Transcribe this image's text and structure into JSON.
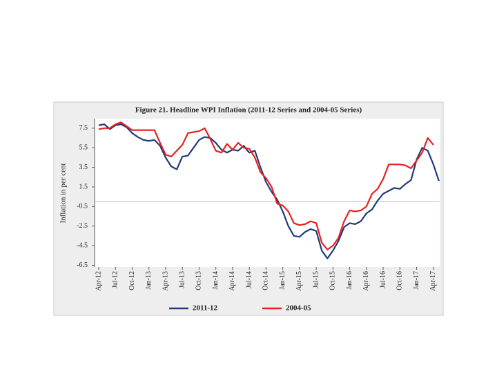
{
  "chart_data": {
    "type": "line",
    "title": "Figure 21. Headline WPI Inflation (2011-12 Series and 2004-05 Series)",
    "y_label": "Inflation in per cent",
    "categories": [
      "Apr-12",
      null,
      null,
      "Jul-12",
      null,
      null,
      "Oct-12",
      null,
      null,
      "Jan-13",
      null,
      null,
      "Apr-13",
      null,
      null,
      "Jul-13",
      null,
      null,
      "Oct-13",
      null,
      null,
      "Jan-14",
      null,
      null,
      "Apr-14",
      null,
      null,
      "Jul-14",
      null,
      null,
      "Oct-14",
      null,
      null,
      "Jan-15",
      null,
      null,
      "Apr-15",
      null,
      null,
      "Jul-15",
      null,
      null,
      "Oct-15",
      null,
      null,
      "Jan-16",
      null,
      null,
      "Apr-16",
      null,
      null,
      "Jul-16",
      null,
      null,
      "Oct-16",
      null,
      null,
      "Jan-17",
      null,
      null,
      "Apr-17",
      null
    ],
    "series": [
      {
        "name": "2011-12",
        "color": "#1f3a7a",
        "values": [
          7.8,
          7.9,
          7.4,
          7.8,
          7.9,
          7.6,
          7.0,
          6.6,
          6.3,
          6.2,
          6.3,
          5.7,
          4.5,
          3.6,
          3.3,
          4.6,
          4.7,
          5.5,
          6.3,
          6.6,
          6.5,
          6.0,
          5.3,
          5.0,
          5.3,
          5.2,
          5.7,
          5.0,
          5.2,
          3.5,
          2.0,
          1.0,
          0.2,
          -1.0,
          -2.5,
          -3.5,
          -3.6,
          -3.1,
          -2.8,
          -3.0,
          -5.0,
          -5.8,
          -5.0,
          -4.0,
          -2.6,
          -2.2,
          -2.3,
          -2.0,
          -1.2,
          -0.8,
          0.1,
          0.8,
          1.1,
          1.4,
          1.3,
          1.8,
          2.2,
          4.3,
          5.5,
          5.2,
          3.8,
          2.1
        ]
      },
      {
        "name": "2004-05",
        "color": "#e8201e",
        "values": [
          7.4,
          7.5,
          7.5,
          7.9,
          8.1,
          7.7,
          7.3,
          7.3,
          7.3,
          7.3,
          7.3,
          6.0,
          4.8,
          4.6,
          5.2,
          5.8,
          7.0,
          7.1,
          7.2,
          7.5,
          6.4,
          5.2,
          5.0,
          5.9,
          5.3,
          6.0,
          5.5,
          5.4,
          4.5,
          3.0,
          2.4,
          1.5,
          -0.2,
          -0.4,
          -1.0,
          -2.2,
          -2.4,
          -2.3,
          -2.0,
          -2.2,
          -4.2,
          -4.9,
          -4.5,
          -3.7,
          -2.0,
          -0.9,
          -1.0,
          -0.9,
          -0.5,
          0.8,
          1.3,
          2.3,
          3.8,
          3.8,
          3.8,
          3.7,
          3.4,
          4.2,
          5.0,
          6.5,
          5.8,
          null
        ]
      }
    ],
    "ylim": [
      -6.5,
      8.5
    ],
    "yticks": [
      7.5,
      5.5,
      3.5,
      1.5,
      -0.5,
      -2.5,
      -4.5,
      -6.5
    ],
    "zero_line": true
  }
}
